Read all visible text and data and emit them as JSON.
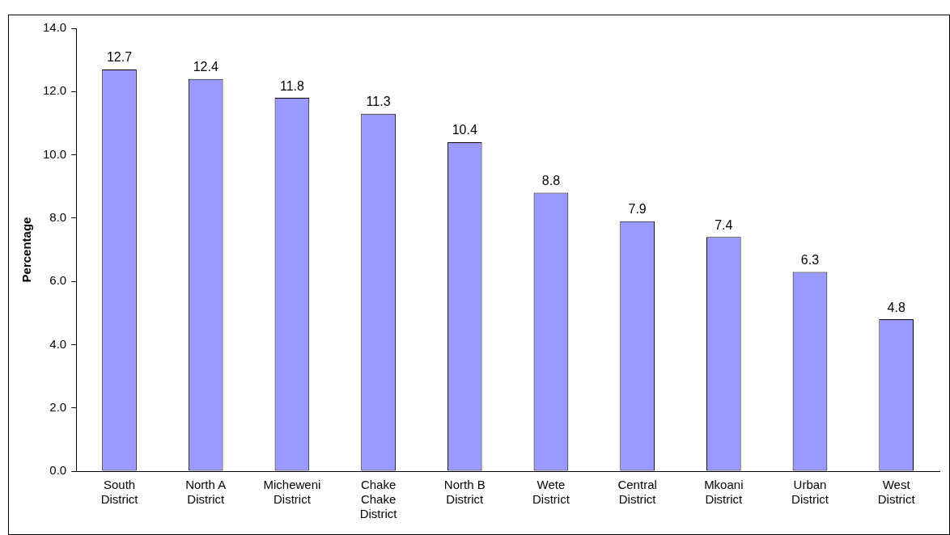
{
  "chart_data": {
    "type": "bar",
    "ylabel": "Percentage",
    "categories": [
      "South District",
      "North A District",
      "Micheweni District",
      "Chake Chake District",
      "North B District",
      "Wete District",
      "Central District",
      "Mkoani District",
      "Urban District",
      "West District"
    ],
    "values": [
      12.7,
      12.4,
      11.8,
      11.3,
      10.4,
      8.8,
      7.9,
      7.4,
      6.3,
      4.8
    ],
    "color": "#9999ff",
    "data_labels": true,
    "grid": false,
    "legend": false,
    "ylim": [
      0,
      14
    ],
    "yticks": [
      {
        "value": 0,
        "label": "0.0"
      },
      {
        "value": 2,
        "label": "2.0"
      },
      {
        "value": 4,
        "label": "4.0"
      },
      {
        "value": 6,
        "label": "6.0"
      },
      {
        "value": 8,
        "label": "8.0"
      },
      {
        "value": 10,
        "label": "10.0"
      },
      {
        "value": 12,
        "label": "12.0"
      },
      {
        "value": 14,
        "label": "14.0"
      }
    ]
  }
}
